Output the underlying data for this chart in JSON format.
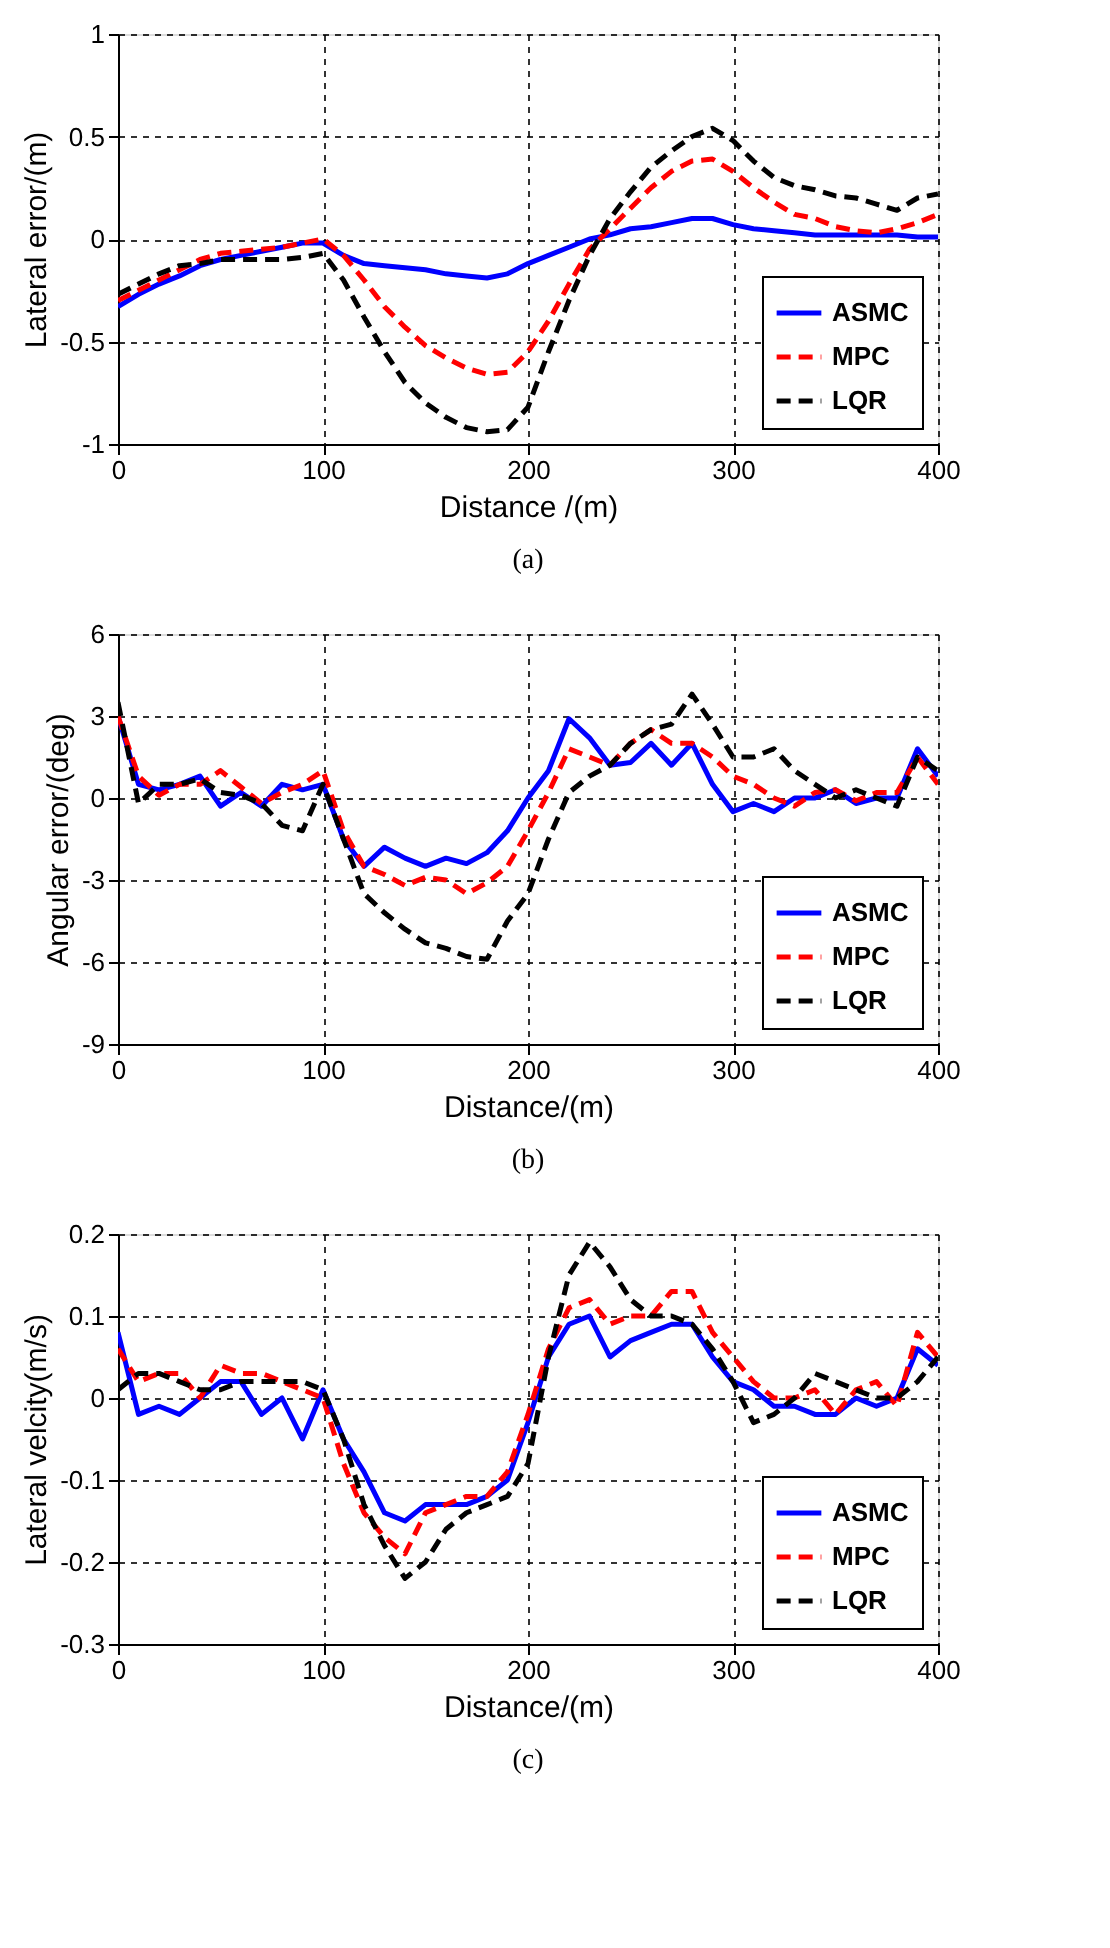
{
  "chart_data": [
    {
      "type": "line",
      "xlabel": "Distance /(m)",
      "ylabel": "Lateral error/(m)",
      "xlim": [
        0,
        400
      ],
      "xticks": [
        0,
        100,
        200,
        300,
        400
      ],
      "ylim": [
        -1,
        1
      ],
      "yticks": [
        -1,
        -0.5,
        0,
        0.5,
        1
      ],
      "grid": true,
      "legend": "bottom right",
      "annotations": [
        "(a)"
      ],
      "x": [
        0,
        10,
        20,
        30,
        40,
        50,
        60,
        70,
        80,
        90,
        100,
        110,
        120,
        130,
        140,
        150,
        160,
        170,
        180,
        190,
        200,
        210,
        220,
        230,
        240,
        250,
        260,
        270,
        280,
        290,
        300,
        310,
        320,
        330,
        340,
        350,
        360,
        370,
        380,
        390,
        400
      ],
      "series": [
        {
          "name": "ASMC",
          "color": "#0000ff",
          "line_style": "solid",
          "values": [
            -0.33,
            -0.27,
            -0.22,
            -0.18,
            -0.13,
            -0.1,
            -0.08,
            -0.06,
            -0.04,
            -0.02,
            -0.02,
            -0.08,
            -0.12,
            -0.13,
            -0.14,
            -0.15,
            -0.17,
            -0.18,
            -0.19,
            -0.17,
            -0.12,
            -0.08,
            -0.04,
            0.0,
            0.02,
            0.05,
            0.06,
            0.08,
            0.1,
            0.1,
            0.07,
            0.05,
            0.04,
            0.03,
            0.02,
            0.02,
            0.02,
            0.02,
            0.02,
            0.01,
            0.01
          ]
        },
        {
          "name": "MPC",
          "color": "#ff0000",
          "line_style": "dashed",
          "values": [
            -0.3,
            -0.25,
            -0.2,
            -0.15,
            -0.1,
            -0.07,
            -0.06,
            -0.05,
            -0.04,
            -0.02,
            0.0,
            -0.08,
            -0.2,
            -0.33,
            -0.43,
            -0.52,
            -0.58,
            -0.63,
            -0.66,
            -0.65,
            -0.55,
            -0.4,
            -0.22,
            -0.05,
            0.05,
            0.15,
            0.25,
            0.33,
            0.38,
            0.39,
            0.33,
            0.25,
            0.18,
            0.12,
            0.1,
            0.06,
            0.04,
            0.03,
            0.05,
            0.08,
            0.12
          ]
        },
        {
          "name": "LQR",
          "color": "#000000",
          "line_style": "dashed",
          "values": [
            -0.27,
            -0.22,
            -0.17,
            -0.13,
            -0.12,
            -0.1,
            -0.1,
            -0.1,
            -0.1,
            -0.09,
            -0.07,
            -0.2,
            -0.38,
            -0.55,
            -0.7,
            -0.8,
            -0.87,
            -0.92,
            -0.94,
            -0.93,
            -0.82,
            -0.55,
            -0.3,
            -0.08,
            0.1,
            0.23,
            0.35,
            0.43,
            0.5,
            0.54,
            0.48,
            0.38,
            0.3,
            0.26,
            0.24,
            0.21,
            0.2,
            0.17,
            0.14,
            0.2,
            0.22
          ]
        }
      ]
    },
    {
      "type": "line",
      "xlabel": "Distance/(m)",
      "ylabel": "Angular error/(deg)",
      "xlim": [
        0,
        400
      ],
      "xticks": [
        0,
        100,
        200,
        300,
        400
      ],
      "ylim": [
        -9,
        6
      ],
      "yticks": [
        -9,
        -6,
        -3,
        0,
        3,
        6
      ],
      "grid": true,
      "legend": "bottom right",
      "annotations": [
        "(b)"
      ],
      "x": [
        0,
        10,
        20,
        30,
        40,
        50,
        60,
        70,
        80,
        90,
        100,
        110,
        120,
        130,
        140,
        150,
        160,
        170,
        180,
        190,
        200,
        210,
        220,
        230,
        240,
        250,
        260,
        270,
        280,
        290,
        300,
        310,
        320,
        330,
        340,
        350,
        360,
        370,
        380,
        390,
        400
      ],
      "series": [
        {
          "name": "ASMC",
          "color": "#0000ff",
          "line_style": "solid",
          "values": [
            3,
            0.5,
            0.3,
            0.5,
            0.8,
            -0.3,
            0.2,
            -0.3,
            0.5,
            0.3,
            0.5,
            -1.5,
            -2.5,
            -1.8,
            -2.2,
            -2.5,
            -2.2,
            -2.4,
            -2,
            -1.2,
            0,
            1,
            2.9,
            2.2,
            1.2,
            1.3,
            2,
            1.2,
            2,
            0.5,
            -0.5,
            -0.2,
            -0.5,
            0,
            0,
            0.3,
            -0.2,
            0,
            0,
            1.8,
            0.8
          ]
        },
        {
          "name": "MPC",
          "color": "#ff0000",
          "line_style": "dashed",
          "values": [
            3,
            0.8,
            0.1,
            0.5,
            0.5,
            1,
            0.4,
            -0.2,
            0.2,
            0.5,
            1,
            -1.2,
            -2.5,
            -2.8,
            -3.2,
            -2.9,
            -3,
            -3.5,
            -3.1,
            -2.5,
            -1.2,
            0.2,
            1.8,
            1.5,
            1.2,
            2,
            2.5,
            2,
            2,
            1.5,
            0.8,
            0.5,
            0,
            -0.3,
            0.2,
            0.3,
            -0.1,
            0.2,
            0.2,
            1.5,
            0.5
          ]
        },
        {
          "name": "LQR",
          "color": "#000000",
          "line_style": "dashed",
          "values": [
            3.5,
            -0.2,
            0.5,
            0.5,
            0.7,
            0.2,
            0.1,
            -0.2,
            -1,
            -1.2,
            0.5,
            -1.5,
            -3.5,
            -4.2,
            -4.8,
            -5.3,
            -5.5,
            -5.8,
            -5.9,
            -4.5,
            -3.5,
            -1.5,
            0.2,
            0.8,
            1.2,
            2,
            2.5,
            2.7,
            3.8,
            2.7,
            1.5,
            1.5,
            1.8,
            1,
            0.5,
            0,
            0.3,
            0,
            -0.3,
            1.5,
            1
          ]
        }
      ]
    },
    {
      "type": "line",
      "xlabel": "Distance/(m)",
      "ylabel": "Lateral velcity(m/s)",
      "xlim": [
        0,
        400
      ],
      "xticks": [
        0,
        100,
        200,
        300,
        400
      ],
      "ylim": [
        -0.3,
        0.2
      ],
      "yticks": [
        -0.3,
        -0.2,
        -0.1,
        0,
        0.1,
        0.2
      ],
      "grid": true,
      "legend": "bottom right",
      "annotations": [
        "(c)"
      ],
      "x": [
        0,
        10,
        20,
        30,
        40,
        50,
        60,
        70,
        80,
        90,
        100,
        110,
        120,
        130,
        140,
        150,
        160,
        170,
        180,
        190,
        200,
        210,
        220,
        230,
        240,
        250,
        260,
        270,
        280,
        290,
        300,
        310,
        320,
        330,
        340,
        350,
        360,
        370,
        380,
        390,
        400
      ],
      "series": [
        {
          "name": "ASMC",
          "color": "#0000ff",
          "line_style": "solid",
          "values": [
            0.08,
            -0.02,
            -0.01,
            -0.02,
            0.0,
            0.02,
            0.02,
            -0.02,
            0.0,
            -0.05,
            0.01,
            -0.05,
            -0.09,
            -0.14,
            -0.15,
            -0.13,
            -0.13,
            -0.13,
            -0.12,
            -0.1,
            -0.03,
            0.05,
            0.09,
            0.1,
            0.05,
            0.07,
            0.08,
            0.09,
            0.09,
            0.05,
            0.02,
            0.01,
            -0.01,
            -0.01,
            -0.02,
            -0.02,
            0.0,
            -0.01,
            0.0,
            0.06,
            0.04
          ]
        },
        {
          "name": "MPC",
          "color": "#ff0000",
          "line_style": "dashed",
          "values": [
            0.06,
            0.02,
            0.03,
            0.03,
            0.0,
            0.04,
            0.03,
            0.03,
            0.02,
            0.01,
            0.0,
            -0.08,
            -0.14,
            -0.17,
            -0.19,
            -0.14,
            -0.13,
            -0.12,
            -0.12,
            -0.09,
            -0.02,
            0.06,
            0.11,
            0.12,
            0.09,
            0.1,
            0.1,
            0.13,
            0.13,
            0.08,
            0.05,
            0.02,
            0.0,
            0.0,
            0.01,
            -0.02,
            0.01,
            0.02,
            -0.01,
            0.08,
            0.05
          ]
        },
        {
          "name": "LQR",
          "color": "#000000",
          "line_style": "dashed",
          "values": [
            0.01,
            0.03,
            0.03,
            0.02,
            0.01,
            0.01,
            0.02,
            0.02,
            0.02,
            0.02,
            0.01,
            -0.05,
            -0.13,
            -0.18,
            -0.22,
            -0.2,
            -0.16,
            -0.14,
            -0.13,
            -0.12,
            -0.08,
            0.05,
            0.15,
            0.19,
            0.16,
            0.12,
            0.1,
            0.1,
            0.09,
            0.06,
            0.02,
            -0.03,
            -0.02,
            0.0,
            0.03,
            0.02,
            0.01,
            0.0,
            0.0,
            0.02,
            0.05
          ]
        }
      ]
    }
  ]
}
